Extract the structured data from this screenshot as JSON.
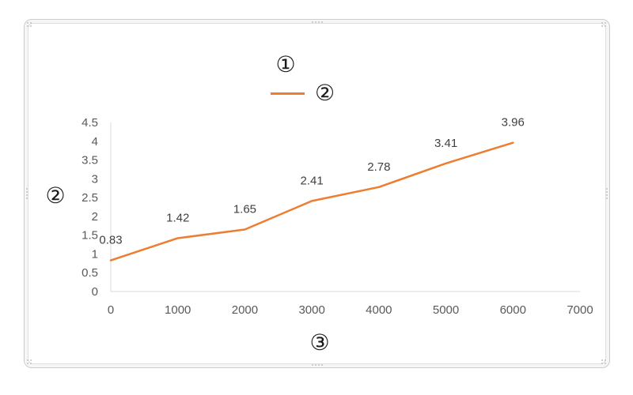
{
  "chart": {
    "title_placeholder": "①",
    "legend_placeholder": "②",
    "y_axis_placeholder": "②",
    "x_axis_placeholder": "③"
  },
  "chart_data": {
    "type": "line",
    "title": "①",
    "xlabel": "③",
    "ylabel": "②",
    "legend_entries": [
      "②"
    ],
    "legend_position": "top",
    "x": [
      0,
      1000,
      2000,
      3000,
      4000,
      5000,
      6000
    ],
    "series": [
      {
        "name": "②",
        "color": "#ED7D31",
        "values": [
          0.83,
          1.42,
          1.65,
          2.41,
          2.78,
          3.41,
          3.96
        ]
      }
    ],
    "data_labels": [
      "0.83",
      "1.42",
      "1.65",
      "2.41",
      "2.78",
      "3.41",
      "3.96"
    ],
    "x_ticks": [
      "0",
      "1000",
      "2000",
      "3000",
      "4000",
      "5000",
      "6000",
      "7000"
    ],
    "y_ticks": [
      "0",
      "0.5",
      "1",
      "1.5",
      "2",
      "2.5",
      "3",
      "3.5",
      "4",
      "4.5"
    ],
    "xlim": [
      0,
      7000
    ],
    "ylim": [
      0,
      4.5
    ],
    "grid": false
  },
  "colors": {
    "series_line": "#ED7D31",
    "axis_line": "#D9D9D9",
    "tick_text": "#595959",
    "data_label_text": "#404040"
  }
}
